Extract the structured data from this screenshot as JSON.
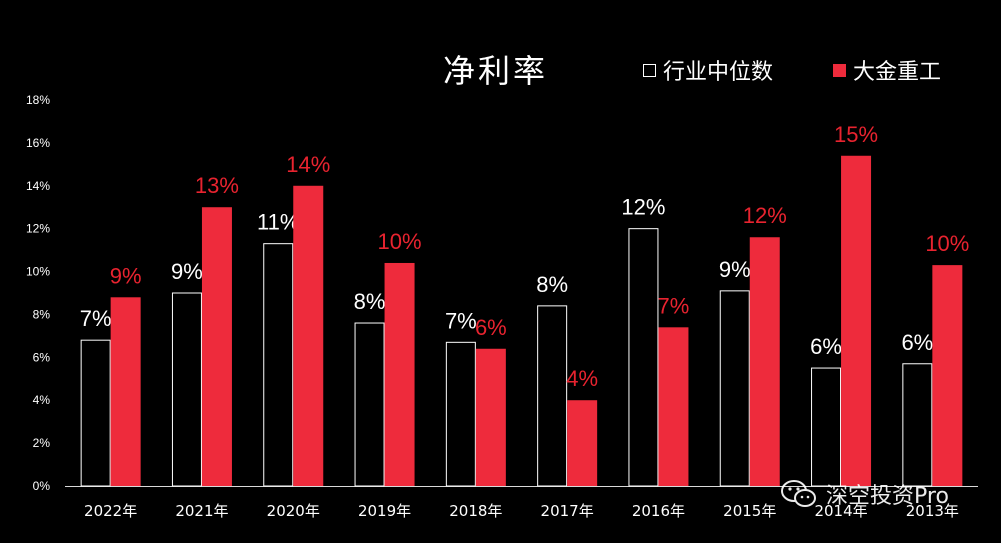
{
  "chart_data": {
    "type": "bar",
    "title": "净利率",
    "categories": [
      "2022年",
      "2021年",
      "2020年",
      "2019年",
      "2018年",
      "2017年",
      "2016年",
      "2015年",
      "2014年",
      "2013年"
    ],
    "series": [
      {
        "name": "行业中位数",
        "color": "#000000",
        "border": "#ffffff",
        "label_color": "#ffffff",
        "values": [
          6.8,
          9.0,
          11.3,
          7.6,
          6.7,
          8.4,
          12.0,
          9.1,
          5.5,
          5.7
        ],
        "labels": [
          "7%",
          "9%",
          "11%",
          "8%",
          "7%",
          "8%",
          "12%",
          "9%",
          "6%",
          "6%"
        ]
      },
      {
        "name": "大金重工",
        "color": "#ee2b3c",
        "border": "#ee2b3c",
        "label_color": "#e8232f",
        "values": [
          8.8,
          13.0,
          14.0,
          10.4,
          6.4,
          4.0,
          7.4,
          11.6,
          15.4,
          10.3
        ],
        "labels": [
          "9%",
          "13%",
          "14%",
          "10%",
          "6%",
          "4%",
          "7%",
          "12%",
          "15%",
          "10%"
        ]
      }
    ],
    "yticks": [
      "0%",
      "2%",
      "4%",
      "6%",
      "8%",
      "10%",
      "12%",
      "14%",
      "16%",
      "18%"
    ],
    "ylim": [
      0,
      18
    ],
    "grid": false,
    "legend_position": "top-right"
  },
  "watermark": {
    "text": "深空投资Pro",
    "icon": "wechat-icon"
  }
}
